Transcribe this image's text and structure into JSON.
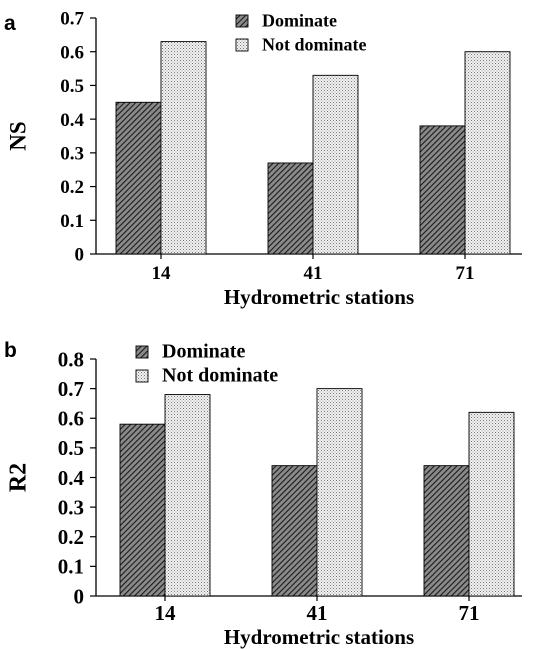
{
  "chart_data": [
    {
      "type": "bar",
      "panel_label": "a",
      "categories": [
        "14",
        "41",
        "71"
      ],
      "series": [
        {
          "name": "Dominate",
          "values": [
            0.45,
            0.27,
            0.38
          ],
          "pattern": "diagonal-hatch",
          "color": "#555555"
        },
        {
          "name": "Not dominate",
          "values": [
            0.63,
            0.53,
            0.6
          ],
          "pattern": "dotted",
          "color": "#bbbbbb"
        }
      ],
      "xlabel": "Hydrometric stations",
      "ylabel": "NS",
      "ylim": [
        0,
        0.7
      ],
      "yticks": [
        "0",
        "0.1",
        "0.2",
        "0.3",
        "0.4",
        "0.5",
        "0.6",
        "0.7"
      ],
      "grid": false,
      "legend_position": "top-center"
    },
    {
      "type": "bar",
      "panel_label": "b",
      "categories": [
        "14",
        "41",
        "71"
      ],
      "series": [
        {
          "name": "Dominate",
          "values": [
            0.58,
            0.44,
            0.44
          ],
          "pattern": "diagonal-hatch",
          "color": "#555555"
        },
        {
          "name": "Not dominate",
          "values": [
            0.68,
            0.7,
            0.62
          ],
          "pattern": "dotted",
          "color": "#bbbbbb"
        }
      ],
      "xlabel": "Hydrometric stations",
      "ylabel": "R2",
      "ylim": [
        0,
        0.8
      ],
      "yticks": [
        "0",
        "0.1",
        "0.2",
        "0.3",
        "0.4",
        "0.5",
        "0.6",
        "0.7",
        "0.8"
      ],
      "grid": false,
      "legend_position": "top-left"
    }
  ]
}
